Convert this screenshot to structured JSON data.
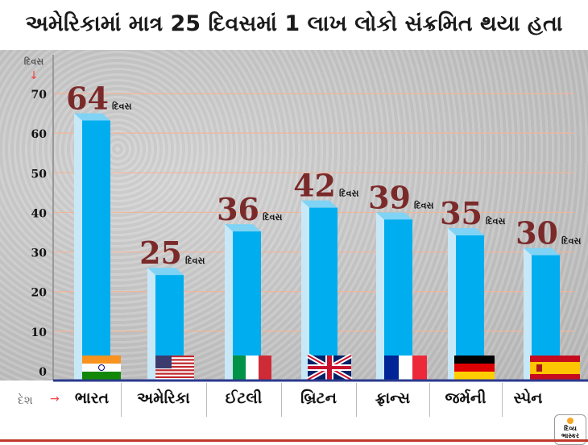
{
  "title": "અમેરિકામાં માત્ર 25 દિવસમાં 1 લાખ લોકો સંક્રમિત થયા હતા",
  "chart_data": {
    "type": "bar",
    "title": "અમેરિકામાં માત્ર 25 દિવસમાં 1 લાખ લોકો સંક્રમિત થયા હતા",
    "ylabel": "દિવસ",
    "xlabel": "દેશ",
    "ylim": [
      0,
      70
    ],
    "yticks": [
      0,
      10,
      20,
      30,
      40,
      50,
      60,
      70
    ],
    "grid": true,
    "categories": [
      "ભારત",
      "અમેરિકા",
      "ઈટલી",
      "બ્રિટન",
      "ફ્રાન્સ",
      "જર્મની",
      "સ્પેન"
    ],
    "values": [
      64,
      25,
      36,
      42,
      39,
      35,
      30
    ],
    "value_unit": "દિવસ",
    "bar_color": "#00aeef",
    "label_color": "#7b2a2a"
  },
  "flags": [
    "india-flag",
    "usa-flag",
    "italy-flag",
    "uk-flag",
    "france-flag",
    "germany-flag",
    "spain-flag"
  ],
  "logo": {
    "text": "દિવ્ય ભાસ્કર"
  }
}
